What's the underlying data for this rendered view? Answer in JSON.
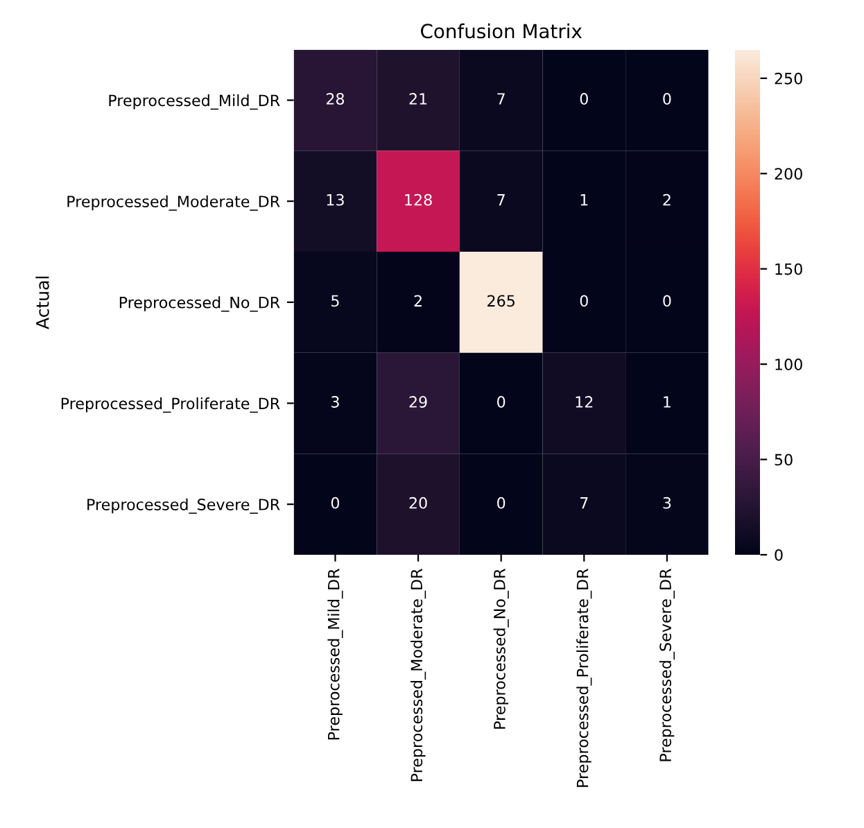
{
  "chart_data": {
    "type": "heatmap",
    "title": "Confusion Matrix",
    "ylabel": "Actual",
    "categories": [
      "Preprocessed_Mild_DR",
      "Preprocessed_Moderate_DR",
      "Preprocessed_No_DR",
      "Preprocessed_Proliferate_DR",
      "Preprocessed_Severe_DR"
    ],
    "y_categories": [
      "Preprocessed_Mild_DR",
      "Preprocessed_Moderate_DR",
      "Preprocessed_No_DR",
      "Preprocessed_Proliferate_DR",
      "Preprocessed_Severe_DR"
    ],
    "cells": [
      [
        28,
        21,
        7,
        0,
        0
      ],
      [
        13,
        128,
        7,
        1,
        2
      ],
      [
        5,
        2,
        265,
        0,
        0
      ],
      [
        3,
        29,
        0,
        12,
        1
      ],
      [
        0,
        20,
        0,
        7,
        3
      ]
    ],
    "data_labels": true,
    "clim": [
      0,
      265
    ],
    "cticks": [
      0,
      50,
      100,
      150,
      200,
      250
    ]
  }
}
